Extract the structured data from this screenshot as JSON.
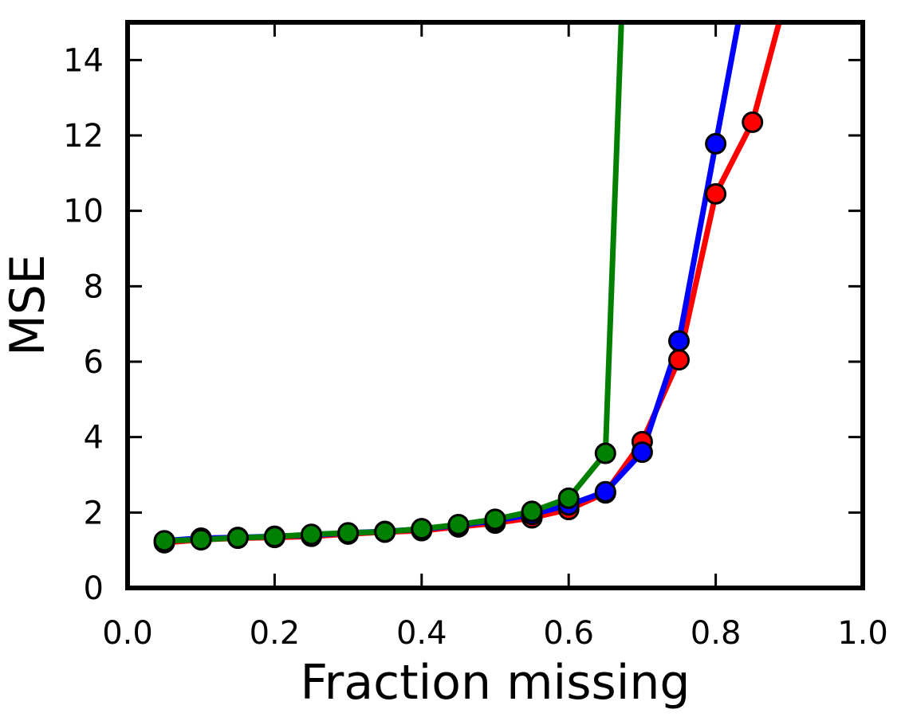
{
  "chart_data": {
    "type": "line",
    "title": "",
    "xlabel": "Fraction missing",
    "ylabel": "MSE",
    "xlim": [
      0.0,
      1.0
    ],
    "ylim": [
      0,
      15
    ],
    "xticks": [
      "0.0",
      "0.2",
      "0.4",
      "0.6",
      "0.8",
      "1.0"
    ],
    "yticks": [
      "0",
      "2",
      "4",
      "6",
      "8",
      "10",
      "12",
      "14"
    ],
    "grid": false,
    "legend": "none",
    "series": [
      {
        "color": "#ff0000",
        "x": [
          0.05,
          0.1,
          0.15,
          0.2,
          0.25,
          0.3,
          0.35,
          0.4,
          0.45,
          0.5,
          0.55,
          0.6,
          0.65,
          0.7,
          0.75,
          0.8,
          0.85,
          0.9
        ],
        "y": [
          1.2,
          1.28,
          1.32,
          1.34,
          1.37,
          1.43,
          1.48,
          1.52,
          1.62,
          1.72,
          1.86,
          2.08,
          2.52,
          3.88,
          6.05,
          10.45,
          12.35,
          16.0
        ],
        "markers": 17
      },
      {
        "color": "#0000ff",
        "x": [
          0.05,
          0.1,
          0.15,
          0.2,
          0.25,
          0.3,
          0.35,
          0.4,
          0.45,
          0.5,
          0.55,
          0.6,
          0.65,
          0.7,
          0.75,
          0.8,
          0.85
        ],
        "y": [
          1.25,
          1.32,
          1.34,
          1.37,
          1.4,
          1.46,
          1.5,
          1.56,
          1.66,
          1.78,
          1.95,
          2.2,
          2.55,
          3.6,
          6.55,
          11.78,
          17.0
        ],
        "markers": 16
      },
      {
        "color": "#008000",
        "x": [
          0.05,
          0.1,
          0.15,
          0.2,
          0.25,
          0.3,
          0.35,
          0.4,
          0.45,
          0.5,
          0.55,
          0.6,
          0.65,
          0.7
        ],
        "y": [
          1.25,
          1.28,
          1.33,
          1.36,
          1.42,
          1.46,
          1.49,
          1.57,
          1.68,
          1.82,
          2.03,
          2.38,
          3.57,
          30.0
        ],
        "markers": 13
      }
    ]
  }
}
